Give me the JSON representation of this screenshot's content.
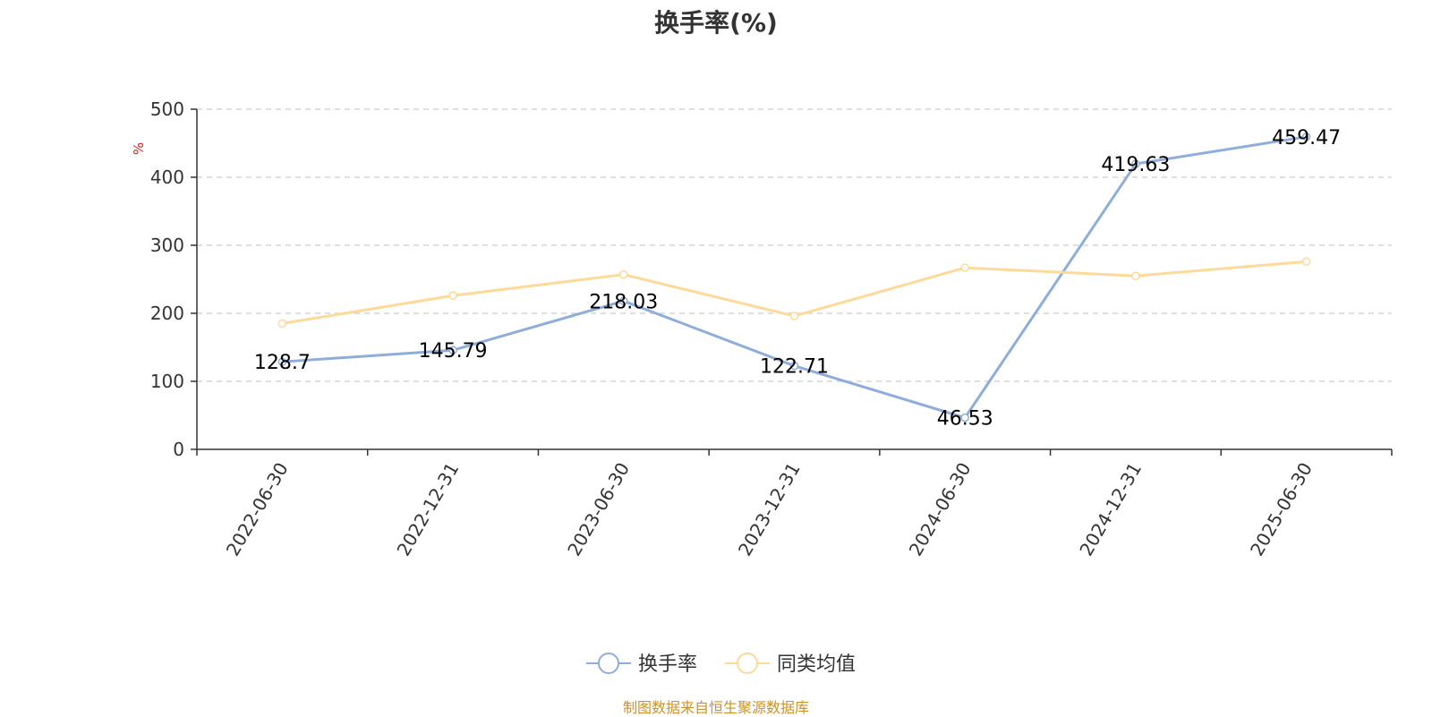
{
  "chart_data": {
    "type": "line",
    "title": "换手率(%)",
    "ylabel": "%",
    "ylim": [
      0,
      500
    ],
    "yticks": [
      0,
      100,
      200,
      300,
      400,
      500
    ],
    "categories": [
      "2022-06-30",
      "2022-12-31",
      "2023-06-30",
      "2023-12-31",
      "2024-06-30",
      "2024-12-31",
      "2025-06-30"
    ],
    "grid": true,
    "legend_position": "bottom-center",
    "series": [
      {
        "name": "换手率",
        "color": "#8eaed9",
        "values": [
          128.7,
          145.79,
          218.03,
          122.71,
          46.53,
          419.63,
          459.47
        ],
        "labels": [
          "128.7",
          "145.79",
          "218.03",
          "122.71",
          "46.53",
          "419.63",
          "459.47"
        ]
      },
      {
        "name": "同类均值",
        "color": "#fdda9a",
        "values": [
          185,
          226,
          257,
          196,
          267,
          255,
          276
        ]
      }
    ]
  },
  "source_text": "制图数据来自恒生聚源数据库"
}
